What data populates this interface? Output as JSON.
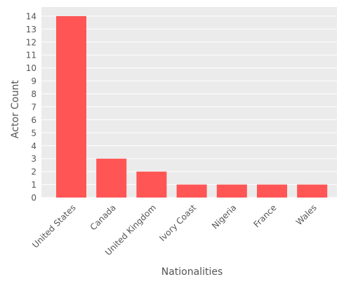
{
  "chart_data": {
    "type": "bar",
    "categories": [
      "United States",
      "Canada",
      "United Kingdom",
      "Ivory Coast",
      "Nigeria",
      "France",
      "Wales"
    ],
    "values": [
      14,
      3,
      2,
      1,
      1,
      1,
      1
    ],
    "title": "",
    "xlabel": "Nationalities",
    "ylabel": "Actor Count",
    "ylim": [
      0,
      14.7
    ],
    "yticks": [
      0,
      1,
      2,
      3,
      4,
      5,
      6,
      7,
      8,
      9,
      10,
      11,
      12,
      13,
      14
    ],
    "grid": true,
    "legend": "none",
    "colors": {
      "bar": "#ff5555",
      "plot_background": "#ebebeb",
      "grid": "#ffffff",
      "text": "#555555"
    }
  }
}
